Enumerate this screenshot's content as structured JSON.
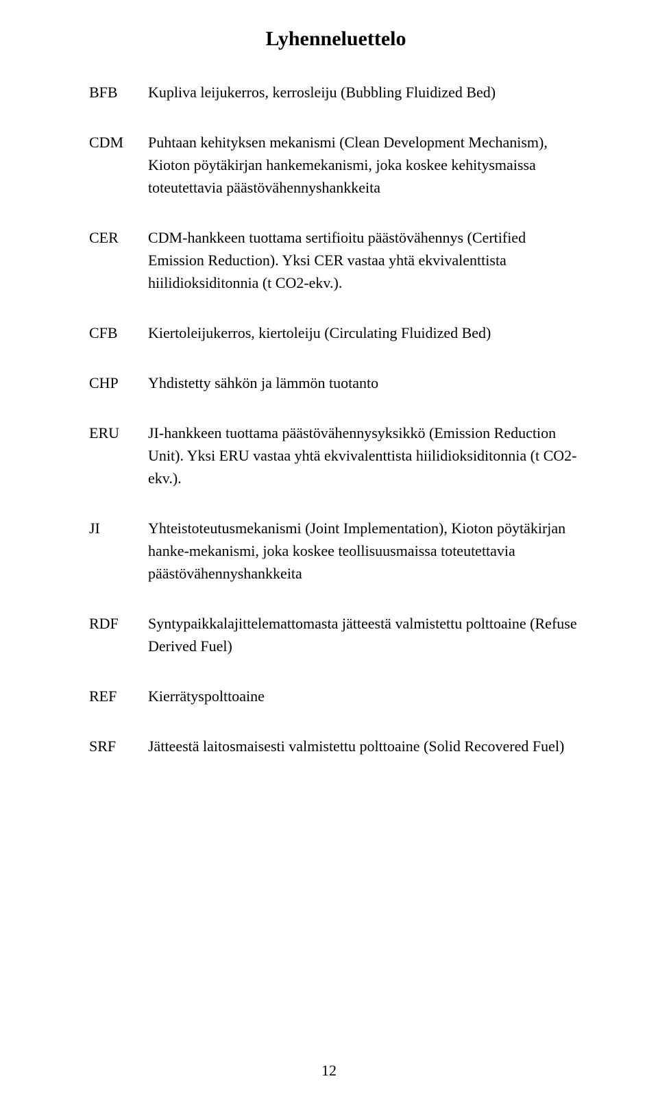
{
  "title": "Lyhenneluettelo",
  "entries": [
    {
      "abbr": "BFB",
      "def": "Kupliva leijukerros, kerrosleiju (Bubbling Fluidized Bed)"
    },
    {
      "abbr": "CDM",
      "def": "Puhtaan kehityksen mekanismi (Clean Development Mechanism), Kioton pöytäkirjan hankemekanismi, joka koskee kehitysmaissa toteutettavia päästövähennyshankkeita"
    },
    {
      "abbr": "CER",
      "def": "CDM-hankkeen tuottama sertifioitu päästövähennys (Certified Emission Reduction). Yksi CER vastaa yhtä ekvivalenttista hiilidioksiditonnia (t CO2-ekv.)."
    },
    {
      "abbr": "CFB",
      "def": "Kiertoleijukerros, kiertoleiju (Circulating Fluidized Bed)"
    },
    {
      "abbr": "CHP",
      "def": "Yhdistetty sähkön ja lämmön tuotanto"
    },
    {
      "abbr": "ERU",
      "def": "JI-hankkeen tuottama päästövähennysyksikkö (Emission Reduction Unit). Yksi ERU vastaa yhtä ekvivalenttista hiilidioksiditonnia (t CO2-ekv.)."
    },
    {
      "abbr": "JI",
      "def": "Yhteistoteutusmekanismi (Joint Implementation), Kioton pöytäkirjan hanke-mekanismi, joka koskee teollisuusmaissa toteutettavia päästövähennyshankkeita"
    },
    {
      "abbr": "RDF",
      "def": "Syntypaikkalajittelemattomasta jätteestä valmistettu polttoaine (Refuse Derived Fuel)"
    },
    {
      "abbr": "REF",
      "def": "Kierrätyspolttoaine"
    },
    {
      "abbr": "SRF",
      "def": "Jätteestä laitosmaisesti valmistettu polttoaine (Solid Recovered Fuel)"
    }
  ],
  "page_number": "12"
}
